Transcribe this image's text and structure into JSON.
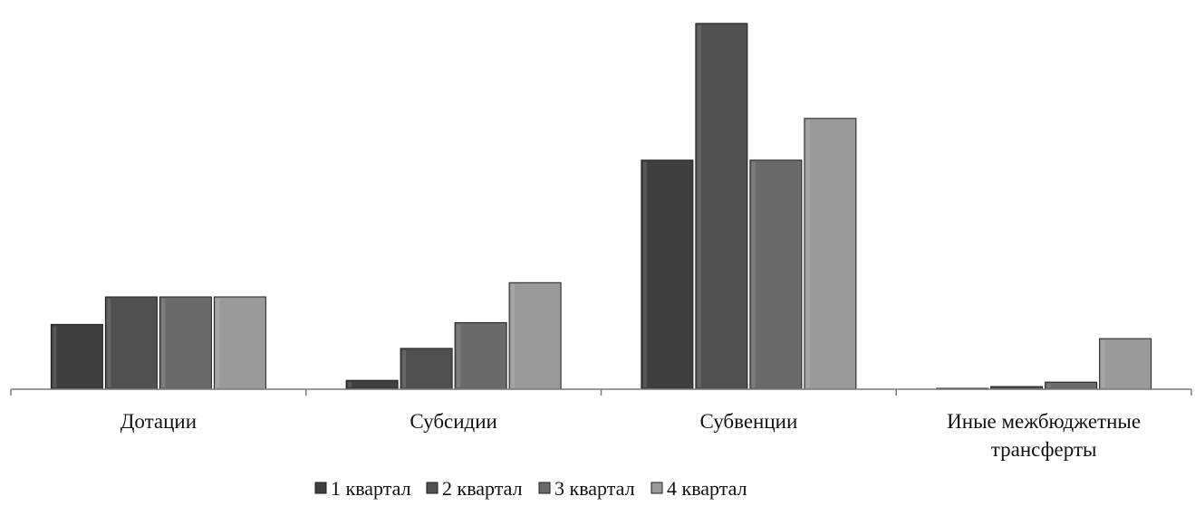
{
  "chart_data": {
    "type": "bar",
    "categories": [
      "Дотации",
      "Субсидии",
      "Субвенции",
      "Иные межбюджетные трансферты"
    ],
    "series": [
      {
        "name": "1 квартал",
        "values": [
          73,
          10,
          258,
          1
        ]
      },
      {
        "name": "2 квартал",
        "values": [
          104,
          46,
          412,
          3
        ]
      },
      {
        "name": "3 квартал",
        "values": [
          104,
          75,
          258,
          8
        ]
      },
      {
        "name": "4 квартал",
        "values": [
          104,
          120,
          305,
          57
        ]
      }
    ],
    "ylim": [
      0,
      420
    ],
    "grid": false,
    "legend_position": "bottom",
    "colors": [
      "#3f3f3f",
      "#505050",
      "#6a6a6a",
      "#9a9a9a"
    ]
  }
}
